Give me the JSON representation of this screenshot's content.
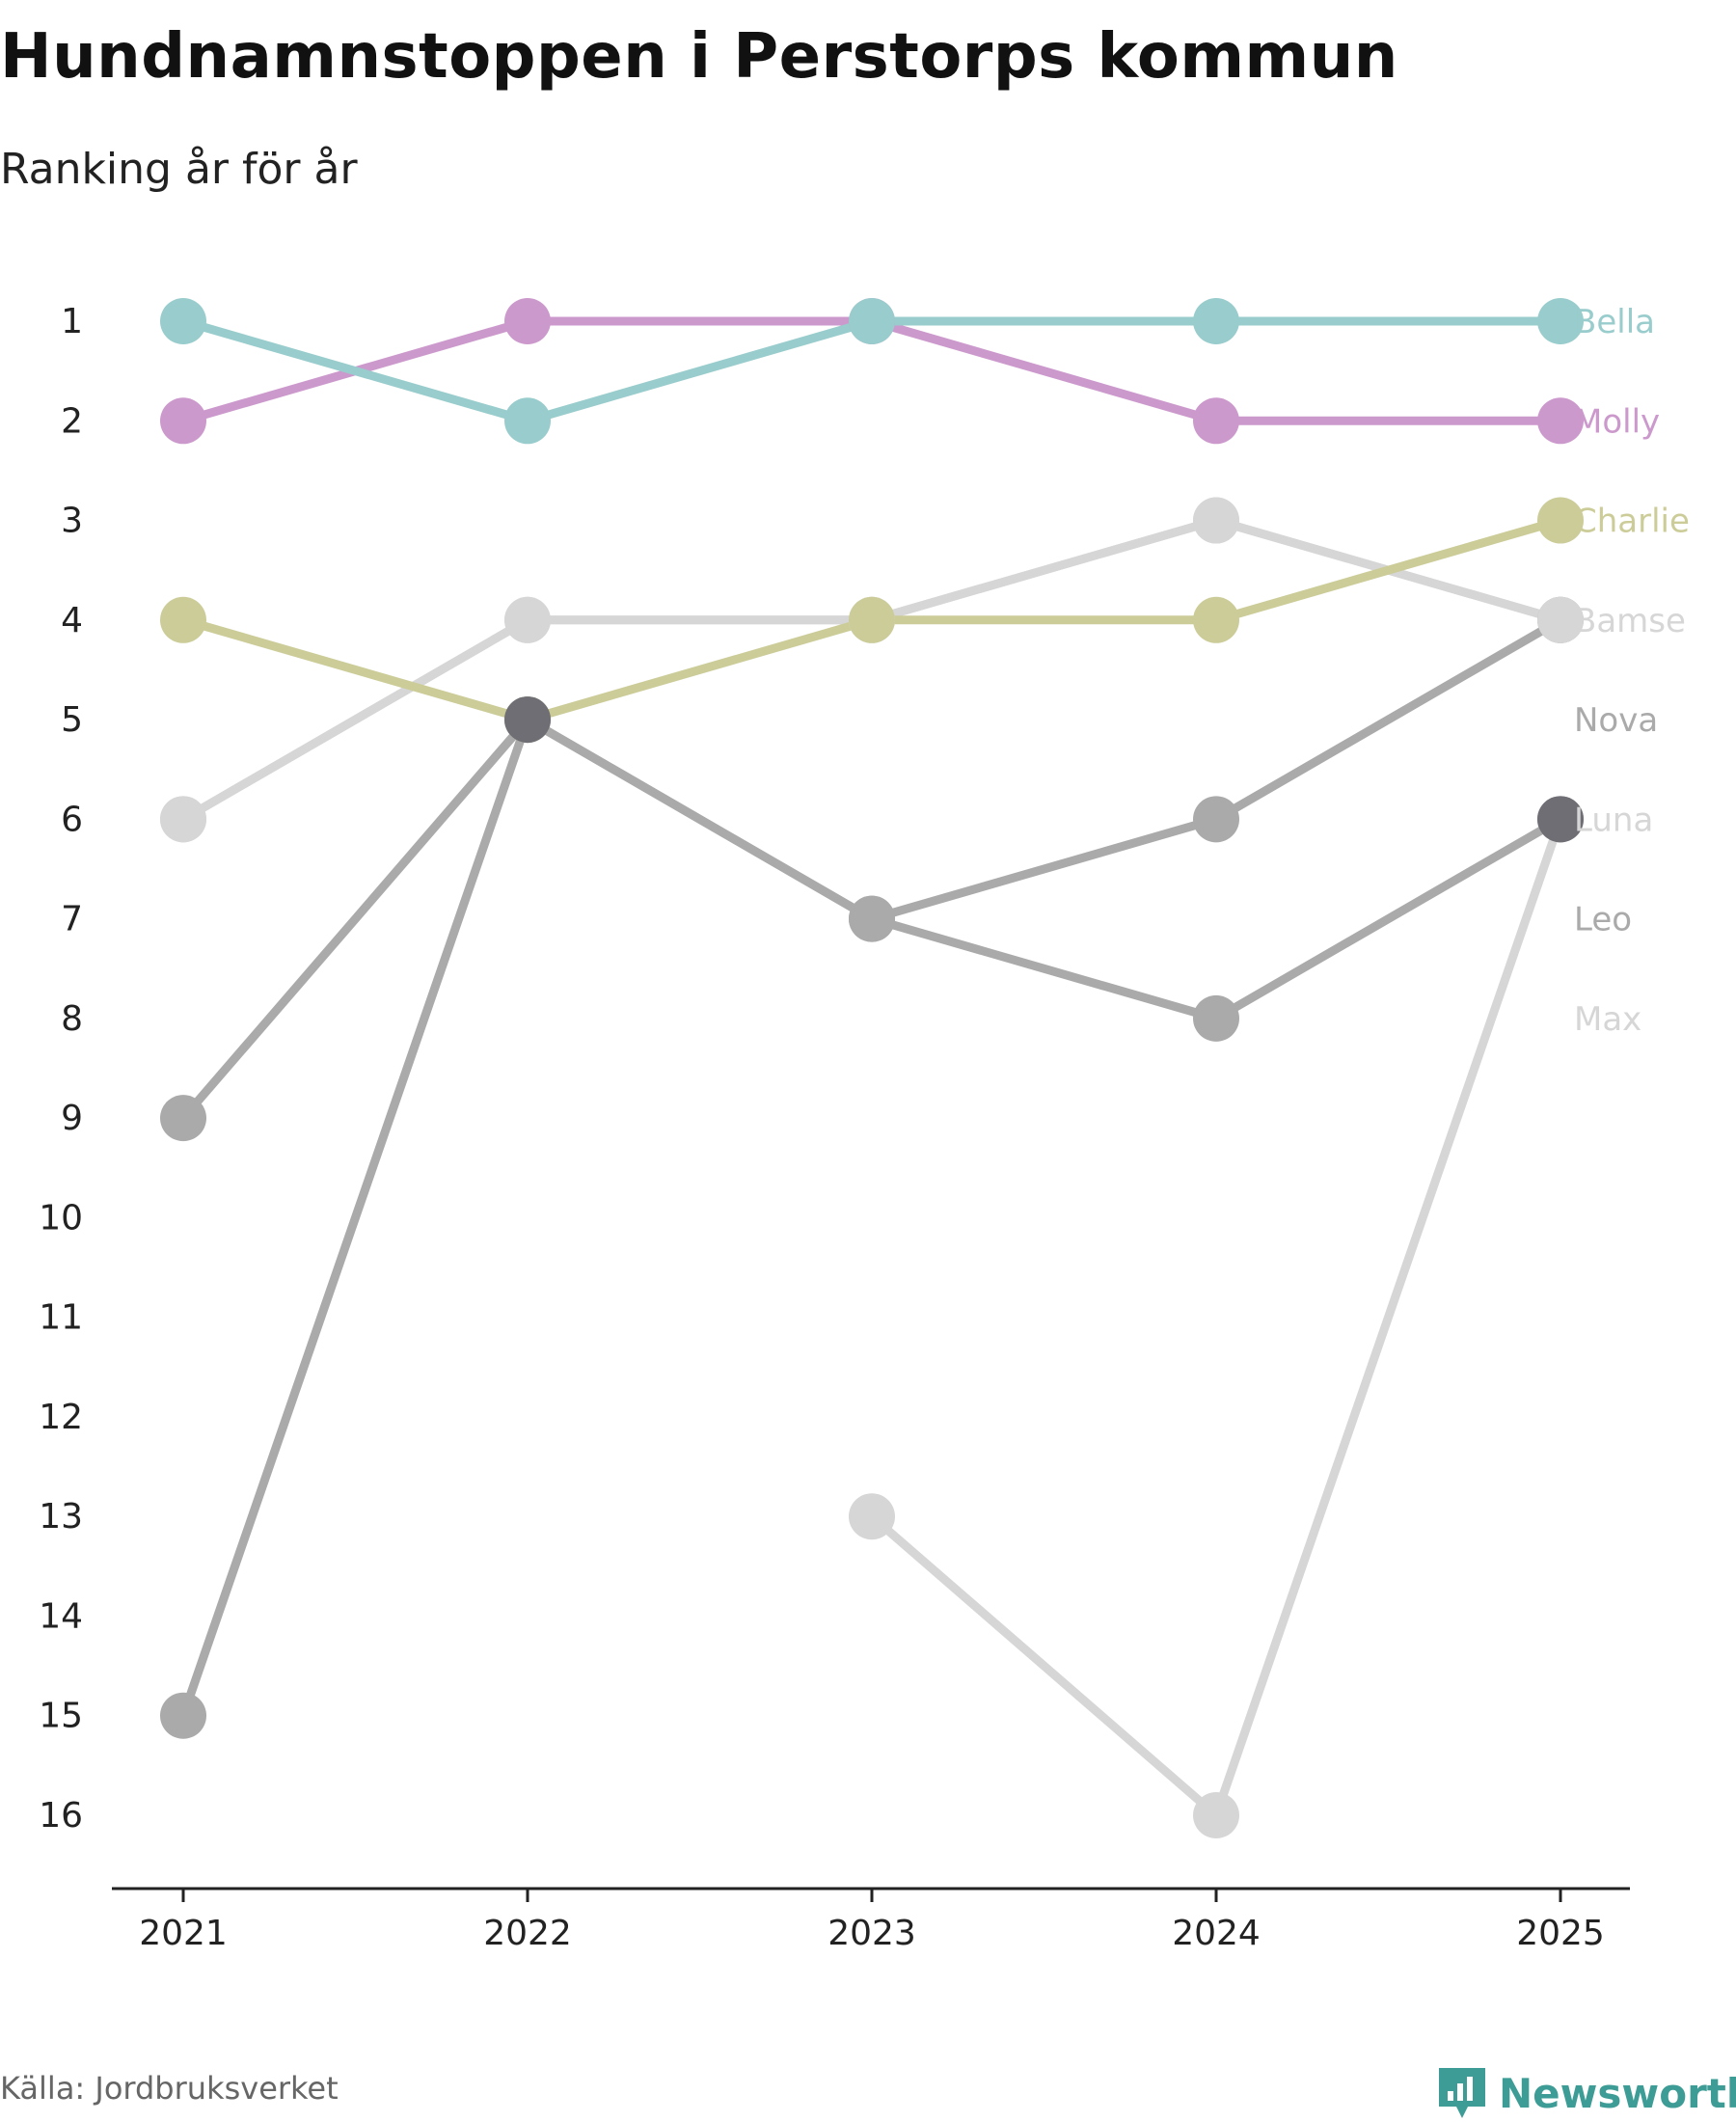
{
  "header": {
    "title": "Hundnamnstoppen i Perstorps kommun",
    "subtitle": "Ranking år för år"
  },
  "footer": {
    "source": "Källa: Jordbruksverket",
    "brand": "Newsworthy"
  },
  "icons": {
    "brand_logo": "bar-chart-pin-icon"
  },
  "colors": {
    "brand": "#3d9c95",
    "axis": "#222222",
    "tick_text": "#222222"
  },
  "chart_data": {
    "type": "line",
    "title": "Hundnamnstoppen i Perstorps kommun",
    "subtitle": "Ranking år för år",
    "xlabel": "",
    "ylabel": "",
    "x": [
      "2021",
      "2022",
      "2023",
      "2024",
      "2025"
    ],
    "y_ticks": [
      "1",
      "2",
      "3",
      "4",
      "5",
      "6",
      "7",
      "8",
      "9",
      "10",
      "11",
      "12",
      "13",
      "14",
      "15",
      "16"
    ],
    "ylim": [
      1,
      16
    ],
    "y_inverted": true,
    "grid": false,
    "legend": "right-end-labels",
    "series": [
      {
        "name": "Max",
        "color": "#d6d6d6",
        "values": [
          null,
          null,
          13,
          16,
          6
        ]
      },
      {
        "name": "Leo",
        "color": "#aaaaaa",
        "values": [
          9,
          5,
          7,
          8,
          6
        ]
      },
      {
        "name": "Luna",
        "color": "#d6d6d6",
        "values": [
          6,
          4,
          4,
          3,
          4
        ]
      },
      {
        "name": "Nova",
        "color": "#aaaaaa",
        "values": [
          15,
          5,
          7,
          6,
          4
        ]
      },
      {
        "name": "Bamse",
        "color": "#d6d6d6",
        "values": [
          6,
          4,
          4,
          3,
          4
        ]
      },
      {
        "name": "Charlie",
        "color": "#cccc99",
        "values": [
          4,
          5,
          4,
          4,
          3
        ]
      },
      {
        "name": "Molly",
        "color": "#cc99cc",
        "values": [
          2,
          1,
          1,
          2,
          2
        ]
      },
      {
        "name": "Bella",
        "color": "#99cccc",
        "values": [
          1,
          2,
          1,
          1,
          1
        ]
      }
    ],
    "label_order": [
      "Bella",
      "Molly",
      "Charlie",
      "Bamse",
      "Nova",
      "Luna",
      "Leo",
      "Max"
    ],
    "label_colors": {
      "Bella": "#99cccc",
      "Molly": "#cc99cc",
      "Charlie": "#cccc99",
      "Bamse": "#d6d6d6",
      "Nova": "#aaaaaa",
      "Luna": "#d6d6d6",
      "Leo": "#aaaaaa",
      "Max": "#d6d6d6"
    },
    "highlight_points": [
      {
        "x": "2022",
        "y": 5,
        "color": "#6e6e74"
      },
      {
        "x": "2025",
        "y": 6,
        "color": "#6e6e74"
      }
    ]
  }
}
